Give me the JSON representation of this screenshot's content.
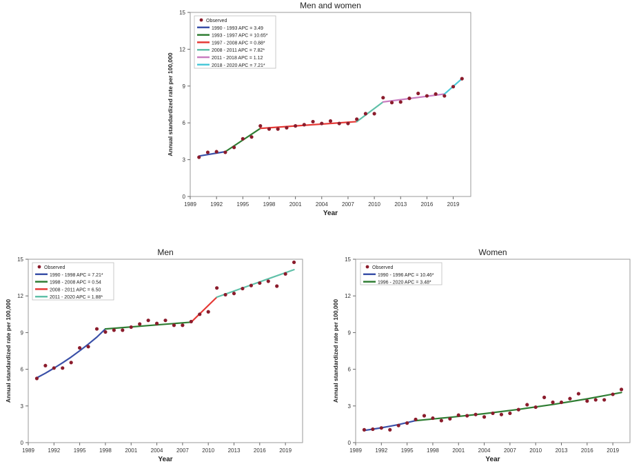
{
  "chart_data": [
    {
      "type": "line",
      "title": "Men and women",
      "xlabel": "Year",
      "ylabel": "Annual standardized rate per 100,000",
      "xlim": [
        1989,
        2021
      ],
      "ylim": [
        0,
        15
      ],
      "x_ticks": [
        1989,
        1992,
        1995,
        1998,
        2001,
        2004,
        2007,
        2010,
        2013,
        2016,
        2019
      ],
      "x_tick_labels": [
        "1989",
        "1992",
        "1995",
        "1998",
        "2001",
        "2004",
        "2007",
        "2010",
        "2013",
        "2016",
        "2019"
      ],
      "y_ticks": [
        0,
        3,
        6,
        9,
        12,
        15
      ],
      "y_tick_labels": [
        "0",
        "3",
        "6",
        "9",
        "12",
        "15"
      ],
      "grid": false,
      "legend_position": "top-left",
      "observed": {
        "name": "Observed",
        "color": "#8b1c2c",
        "x": [
          1990,
          1991,
          1992,
          1993,
          1994,
          1995,
          1996,
          1997,
          1998,
          1999,
          2000,
          2001,
          2002,
          2003,
          2004,
          2005,
          2006,
          2007,
          2008,
          2009,
          2010,
          2011,
          2012,
          2013,
          2014,
          2015,
          2016,
          2017,
          2018,
          2019,
          2020
        ],
        "y": [
          3.2,
          3.6,
          3.65,
          3.6,
          4.0,
          4.7,
          4.85,
          5.75,
          5.5,
          5.5,
          5.6,
          5.75,
          5.85,
          6.1,
          5.95,
          6.15,
          5.95,
          5.95,
          6.3,
          6.75,
          6.75,
          8.05,
          7.65,
          7.7,
          8.0,
          8.4,
          8.2,
          8.35,
          8.2,
          8.95,
          9.6
        ]
      },
      "series": [
        {
          "name": "1990 - 1993 APC = 3.49",
          "color": "#3a50a8",
          "x": [
            1990,
            1993
          ],
          "y": [
            3.3,
            3.65
          ]
        },
        {
          "name": "1993 - 1997 APC = 10.65*",
          "color": "#2e7d32",
          "x": [
            1993,
            1997
          ],
          "y": [
            3.65,
            5.55
          ]
        },
        {
          "name": "1997 - 2008 APC = 0.88*",
          "color": "#e53935",
          "x": [
            1997,
            2008
          ],
          "y": [
            5.55,
            6.1
          ]
        },
        {
          "name": "2008 - 2011 APC = 7.82*",
          "color": "#5fc0a8",
          "x": [
            2008,
            2011
          ],
          "y": [
            6.1,
            7.7
          ]
        },
        {
          "name": "2011 - 2018 APC = 1.12",
          "color": "#c97dc0",
          "x": [
            2011,
            2018
          ],
          "y": [
            7.7,
            8.35
          ]
        },
        {
          "name": "2018 - 2020 APC = 7.21*",
          "color": "#49c8d8",
          "x": [
            2018,
            2020
          ],
          "y": [
            8.35,
            9.6
          ]
        }
      ]
    },
    {
      "type": "line",
      "title": "Men",
      "xlabel": "Year",
      "ylabel": "Annual standardized rate per 100,000",
      "xlim": [
        1989,
        2021
      ],
      "ylim": [
        0,
        15
      ],
      "x_ticks": [
        1989,
        1992,
        1995,
        1998,
        2001,
        2004,
        2007,
        2010,
        2013,
        2016,
        2019
      ],
      "x_tick_labels": [
        "1989",
        "1992",
        "1995",
        "1998",
        "2001",
        "2004",
        "2007",
        "2010",
        "2013",
        "2016",
        "2019"
      ],
      "y_ticks": [
        0,
        3,
        6,
        9,
        12,
        15
      ],
      "y_tick_labels": [
        "0",
        "3",
        "6",
        "9",
        "12",
        "15"
      ],
      "grid": false,
      "legend_position": "top-left",
      "observed": {
        "name": "Observed",
        "color": "#8b1c2c",
        "x": [
          1990,
          1991,
          1992,
          1993,
          1994,
          1995,
          1996,
          1997,
          1998,
          1999,
          2000,
          2001,
          2002,
          2003,
          2004,
          2005,
          2006,
          2007,
          2008,
          2009,
          2010,
          2011,
          2012,
          2013,
          2014,
          2015,
          2016,
          2017,
          2018,
          2019,
          2020
        ],
        "y": [
          5.25,
          6.3,
          6.1,
          6.1,
          6.55,
          7.75,
          7.85,
          9.3,
          9.05,
          9.2,
          9.2,
          9.45,
          9.7,
          10.0,
          9.75,
          10.0,
          9.6,
          9.6,
          9.9,
          10.5,
          10.7,
          12.65,
          12.1,
          12.2,
          12.6,
          12.85,
          13.05,
          13.2,
          12.8,
          13.8,
          14.75
        ]
      },
      "series": [
        {
          "name": "1990 - 1998 APC = 7.21*",
          "color": "#3a50a8",
          "x": [
            1990,
            1991,
            1992,
            1993,
            1994,
            1995,
            1996,
            1997,
            1998
          ],
          "y": [
            5.3,
            5.68,
            6.09,
            6.53,
            7.0,
            7.51,
            8.05,
            8.63,
            9.3
          ]
        },
        {
          "name": "1998 - 2008 APC = 0.54",
          "color": "#2e7d32",
          "x": [
            1998,
            2008
          ],
          "y": [
            9.3,
            9.85
          ]
        },
        {
          "name": "2008 - 2011 APC = 6.50",
          "color": "#e53935",
          "x": [
            2008,
            2011
          ],
          "y": [
            9.85,
            11.9
          ]
        },
        {
          "name": "2011 - 2020 APC = 1.88*",
          "color": "#5fc0a8",
          "x": [
            2011,
            2020
          ],
          "y": [
            11.9,
            14.15
          ]
        }
      ]
    },
    {
      "type": "line",
      "title": "Women",
      "xlabel": "Year",
      "ylabel": "Annual standardized rate per 100,000",
      "xlim": [
        1989,
        2021
      ],
      "ylim": [
        0,
        15
      ],
      "x_ticks": [
        1989,
        1992,
        1995,
        1998,
        2001,
        2004,
        2007,
        2010,
        2013,
        2016,
        2019
      ],
      "x_tick_labels": [
        "1989",
        "1992",
        "1995",
        "1998",
        "2001",
        "2004",
        "2007",
        "2010",
        "2013",
        "2016",
        "2019"
      ],
      "y_ticks": [
        0,
        3,
        6,
        9,
        12,
        15
      ],
      "y_tick_labels": [
        "0",
        "3",
        "6",
        "9",
        "12",
        "15"
      ],
      "grid": false,
      "legend_position": "top-left",
      "observed": {
        "name": "Observed",
        "color": "#8b1c2c",
        "x": [
          1990,
          1991,
          1992,
          1993,
          1994,
          1995,
          1996,
          1997,
          1998,
          1999,
          2000,
          2001,
          2002,
          2003,
          2004,
          2005,
          2006,
          2007,
          2008,
          2009,
          2010,
          2011,
          2012,
          2013,
          2014,
          2015,
          2016,
          2017,
          2018,
          2019,
          2020
        ],
        "y": [
          1.05,
          1.1,
          1.2,
          1.05,
          1.4,
          1.6,
          1.9,
          2.2,
          2.0,
          1.8,
          1.95,
          2.25,
          2.2,
          2.3,
          2.1,
          2.4,
          2.3,
          2.4,
          2.7,
          3.1,
          2.9,
          3.7,
          3.3,
          3.3,
          3.6,
          4.0,
          3.4,
          3.5,
          3.5,
          3.95,
          4.35
        ]
      },
      "series": [
        {
          "name": "1990 - 1996 APC = 10.46*",
          "color": "#3a50a8",
          "x": [
            1990,
            1991,
            1992,
            1993,
            1994,
            1995,
            1996
          ],
          "y": [
            1.0,
            1.1,
            1.21,
            1.34,
            1.48,
            1.64,
            1.8
          ]
        },
        {
          "name": "1996 - 2020 APC = 3.48*",
          "color": "#2e7d32",
          "x": [
            1996,
            2000,
            2004,
            2008,
            2012,
            2016,
            2020
          ],
          "y": [
            1.8,
            2.07,
            2.37,
            2.72,
            3.12,
            3.58,
            4.1
          ]
        }
      ]
    }
  ]
}
